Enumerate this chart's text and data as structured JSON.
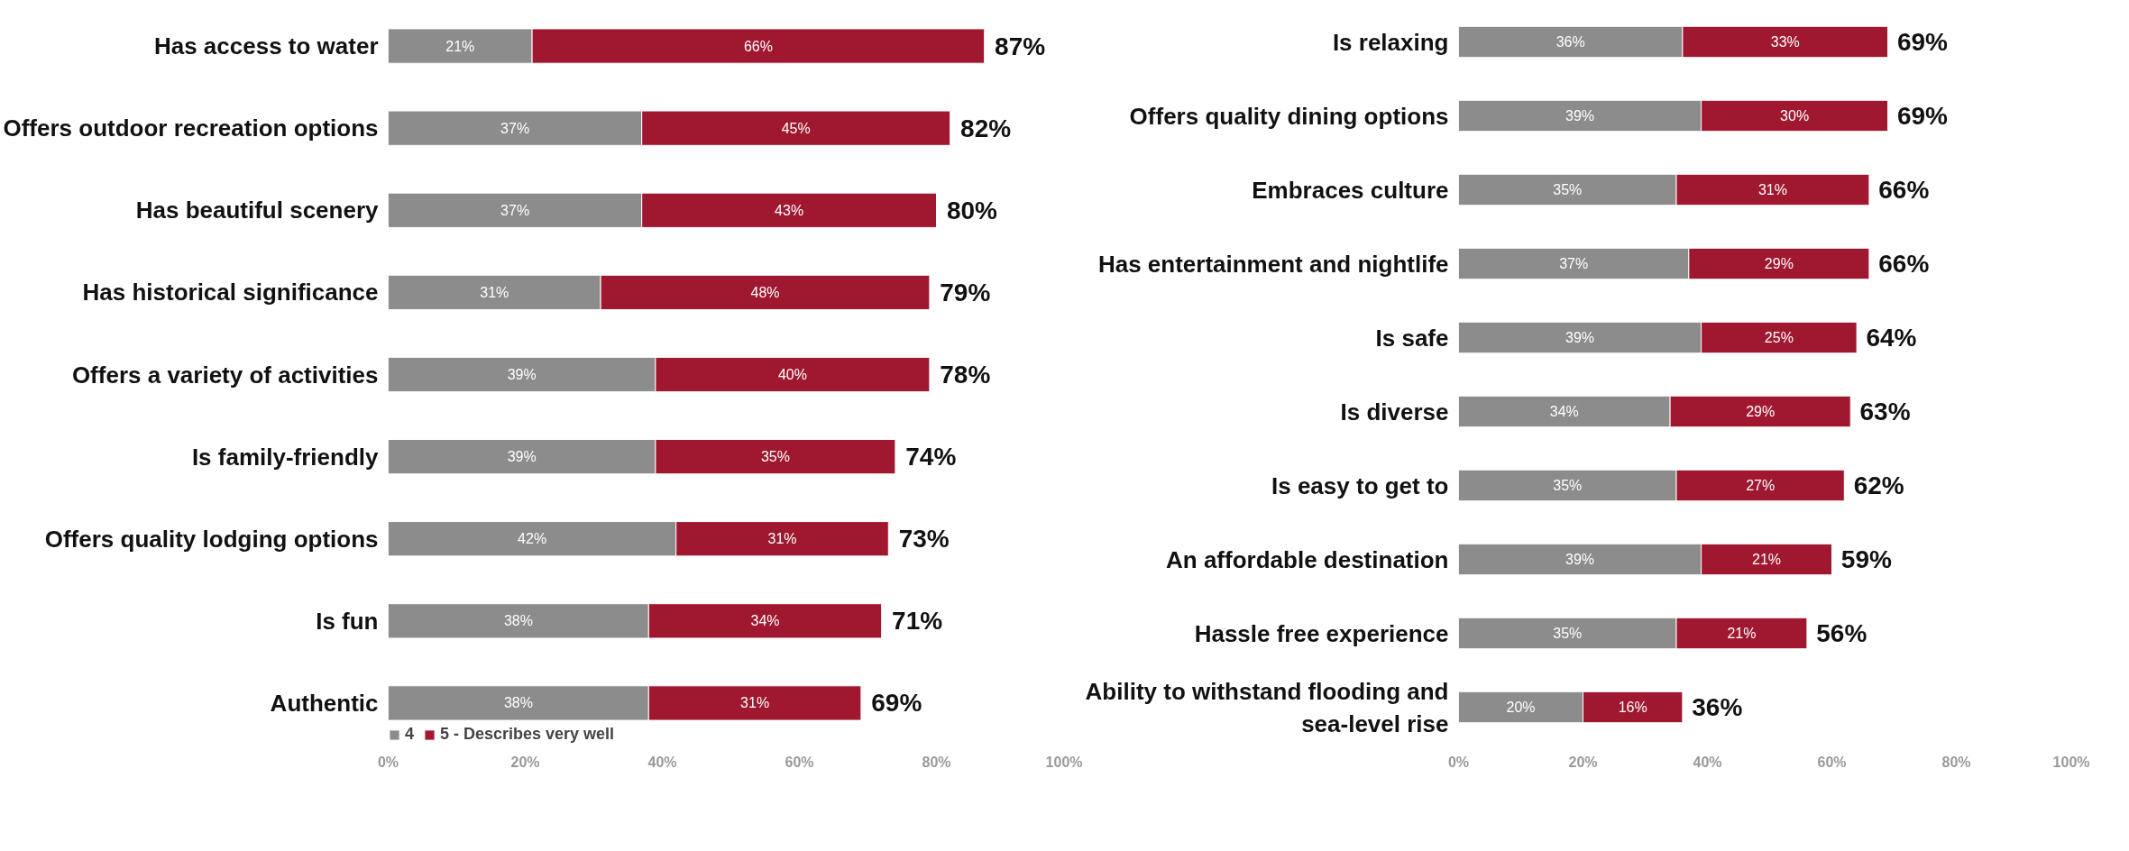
{
  "chart_data": [
    {
      "type": "bar",
      "orientation": "horizontal",
      "stacked": true,
      "categories": [
        "Has access to water",
        "Offers outdoor recreation options",
        "Has beautiful scenery",
        "Has historical significance",
        "Offers a variety of activities",
        "Is family-friendly",
        "Offers quality lodging options",
        "Is fun",
        "Authentic"
      ],
      "series": [
        {
          "name": "4",
          "color": "#8c8c8c",
          "values": [
            21,
            37,
            37,
            31,
            39,
            39,
            42,
            38,
            38
          ],
          "value_labels": [
            "21%",
            "37%",
            "37%",
            "31%",
            "39%",
            "39%",
            "42%",
            "38%",
            "38%"
          ]
        },
        {
          "name": "5 - Describes very well",
          "color": "#a01830",
          "values": [
            66,
            45,
            43,
            48,
            40,
            35,
            31,
            34,
            31
          ],
          "value_labels": [
            "66%",
            "45%",
            "43%",
            "48%",
            "40%",
            "35%",
            "31%",
            "34%",
            "31%"
          ]
        }
      ],
      "totals": [
        "87%",
        "82%",
        "80%",
        "79%",
        "78%",
        "74%",
        "73%",
        "71%",
        "69%"
      ],
      "xlim": [
        0,
        100
      ],
      "xticks": [
        {
          "value": 0,
          "label": "0%"
        },
        {
          "value": 20,
          "label": "20%"
        },
        {
          "value": 40,
          "label": "40%"
        },
        {
          "value": 60,
          "label": "60%"
        },
        {
          "value": 80,
          "label": "80%"
        },
        {
          "value": 100,
          "label": "100%"
        }
      ],
      "grid": false,
      "legend": "bottom left"
    },
    {
      "type": "bar",
      "orientation": "horizontal",
      "stacked": true,
      "categories": [
        "Is relaxing",
        "Offers quality dining options",
        "Embraces culture",
        "Has entertainment and nightlife",
        "Is safe",
        "Is diverse",
        "Is easy to get to",
        "An affordable destination",
        "Hassle free experience",
        "Ability to withstand flooding and sea-level rise"
      ],
      "series": [
        {
          "color": "#8c8c8c",
          "values": [
            36,
            39,
            35,
            37,
            39,
            34,
            35,
            39,
            35,
            20
          ],
          "value_labels": [
            "36%",
            "39%",
            "35%",
            "37%",
            "39%",
            "34%",
            "35%",
            "39%",
            "35%",
            "20%"
          ]
        },
        {
          "color": "#a01830",
          "values": [
            33,
            30,
            31,
            29,
            25,
            29,
            27,
            21,
            21,
            16
          ],
          "value_labels": [
            "33%",
            "30%",
            "31%",
            "29%",
            "25%",
            "29%",
            "27%",
            "21%",
            "21%",
            "16%"
          ]
        }
      ],
      "totals": [
        "69%",
        "69%",
        "66%",
        "66%",
        "64%",
        "63%",
        "62%",
        "59%",
        "56%",
        "36%"
      ],
      "xlim": [
        0,
        100
      ],
      "xticks": [
        {
          "value": 0,
          "label": "0%"
        },
        {
          "value": 20,
          "label": "20%"
        },
        {
          "value": 40,
          "label": "40%"
        },
        {
          "value": 60,
          "label": "60%"
        },
        {
          "value": 80,
          "label": "80%"
        },
        {
          "value": 100,
          "label": "100%"
        }
      ],
      "grid": false
    }
  ]
}
